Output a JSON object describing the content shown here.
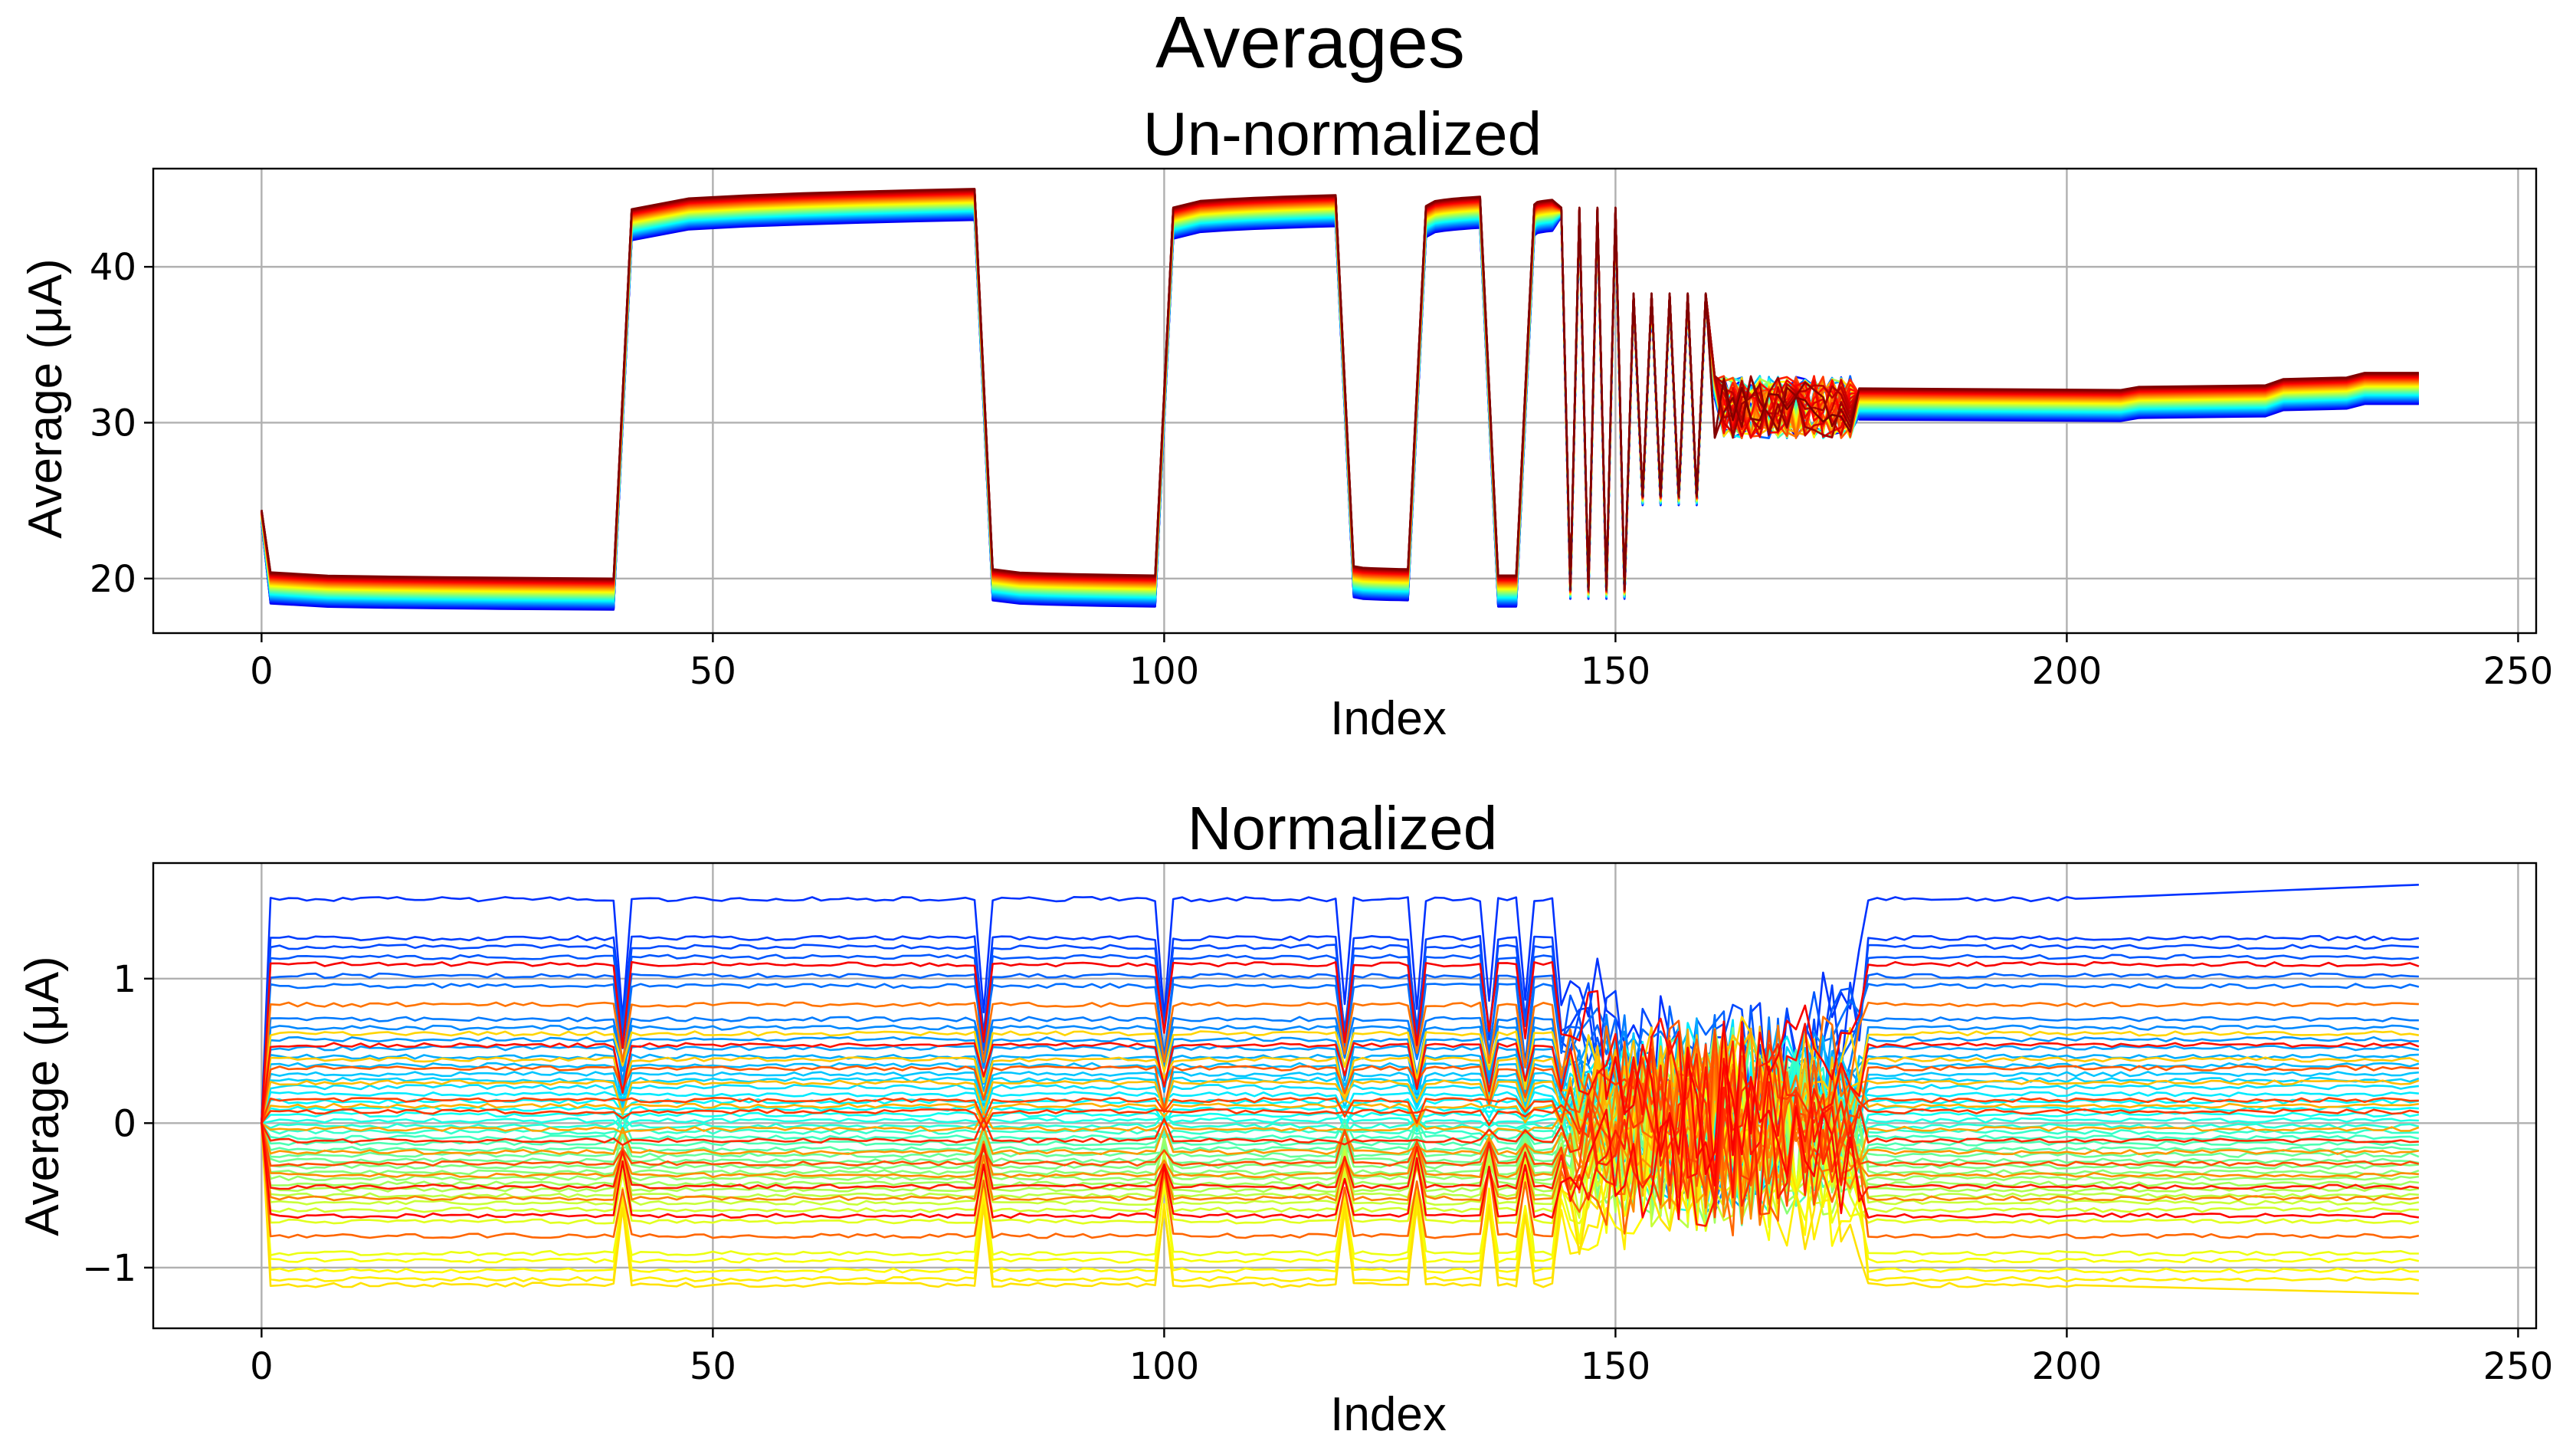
{
  "figure": {
    "suptitle": "Averages"
  },
  "chart_data": [
    {
      "type": "line",
      "title": "Un-normalized",
      "xlabel": "Index",
      "ylabel": "Average (μA)",
      "xlim": [
        -12,
        252
      ],
      "ylim": [
        16.5,
        46.3
      ],
      "xticks": [
        0,
        50,
        100,
        150,
        200,
        250
      ],
      "xtick_labels": [
        "0",
        "50",
        "100",
        "150",
        "200",
        "250"
      ],
      "yticks": [
        20,
        30,
        40
      ],
      "ytick_labels": [
        "20",
        "30",
        "40"
      ],
      "grid": true,
      "colormap": "jet",
      "n_series": 60,
      "x_range": [
        0,
        239
      ],
      "segments": [
        {
          "x": [
            1,
            39
          ],
          "level": "low",
          "value_start": 19.4,
          "value_end": 19.0
        },
        {
          "x": [
            41,
            79
          ],
          "level": "high",
          "value_start": 42.7,
          "value_end": 44.0
        },
        {
          "x": [
            81,
            99
          ],
          "level": "low",
          "value_start": 19.6,
          "value_end": 19.2
        },
        {
          "x": [
            101,
            119
          ],
          "level": "high",
          "value_start": 42.8,
          "value_end": 43.6
        },
        {
          "x": [
            121,
            127
          ],
          "level": "low",
          "value_start": 19.8,
          "value_end": 19.6
        },
        {
          "x": [
            129,
            135
          ],
          "level": "high",
          "value_start": 42.9,
          "value_end": 43.5
        },
        {
          "x": [
            137,
            139
          ],
          "level": "low",
          "value_start": 19.2,
          "value_end": 19.2
        },
        {
          "x": [
            141,
            143
          ],
          "level": "high",
          "value_start": 43.0,
          "value_end": 43.3
        }
      ],
      "alternation": [
        {
          "x": [
            144,
            151
          ],
          "period": 2,
          "high": 43.5,
          "low": 19.0
        },
        {
          "x": [
            152,
            160
          ],
          "period": 2,
          "high": 38.0,
          "low": 25.0
        }
      ],
      "noisy": {
        "x": [
          161,
          176
        ],
        "center": 31.0,
        "spread": 2.0
      },
      "steady": [
        {
          "x": 177,
          "value": 31.2
        },
        {
          "x": 206,
          "value": 31.1
        },
        {
          "x": 208,
          "value": 31.3
        },
        {
          "x": 222,
          "value": 31.4
        },
        {
          "x": 224,
          "value": 31.8
        },
        {
          "x": 231,
          "value": 31.9
        },
        {
          "x": 233,
          "value": 32.2
        },
        {
          "x": 239,
          "value": 32.2
        }
      ],
      "initial_value": 24.0,
      "band_spread_low": 1.0,
      "band_spread_high": 1.0
    },
    {
      "type": "line",
      "title": "Normalized",
      "xlabel": "Index",
      "ylabel": "Average (μA)",
      "xlim": [
        -12,
        252
      ],
      "ylim": [
        -1.42,
        1.8
      ],
      "xticks": [
        0,
        50,
        100,
        150,
        200,
        250
      ],
      "xtick_labels": [
        "0",
        "50",
        "100",
        "150",
        "200",
        "250"
      ],
      "yticks": [
        -1,
        0,
        1
      ],
      "ytick_labels": [
        "−1",
        "0",
        "1"
      ],
      "grid": true,
      "colormap": "jet",
      "n_series": 60,
      "x_range": [
        0,
        239
      ],
      "baseline_levels": [
        1.55,
        1.28,
        1.22,
        1.15,
        1.02,
        0.95,
        0.72,
        0.66,
        0.58,
        0.52,
        0.46,
        0.4,
        0.34,
        0.3,
        0.25,
        0.2,
        0.15,
        0.1,
        0.06,
        0.02,
        -0.02,
        -0.06,
        -0.1,
        -0.14,
        -0.18,
        -0.22,
        -0.26,
        -0.3,
        -0.34,
        -0.38,
        -0.42,
        -0.46,
        -0.5,
        -0.55,
        -0.6,
        -0.68,
        -0.9,
        -0.95,
        -1.02,
        -1.08,
        -1.12,
        0.62,
        0.44,
        0.28,
        0.12,
        -0.04,
        -0.2,
        -0.36,
        -0.52,
        0.82,
        -0.78,
        0.38,
        -0.28,
        0.16,
        0.08,
        -0.12,
        -0.44,
        0.54,
        -0.64,
        1.1
      ],
      "transition_indices": [
        40,
        80,
        100,
        120,
        128,
        136,
        140,
        144
      ],
      "chaotic_x_range": [
        145,
        177
      ],
      "end_value_top": 1.65,
      "end_value_bottom": -1.18
    }
  ]
}
